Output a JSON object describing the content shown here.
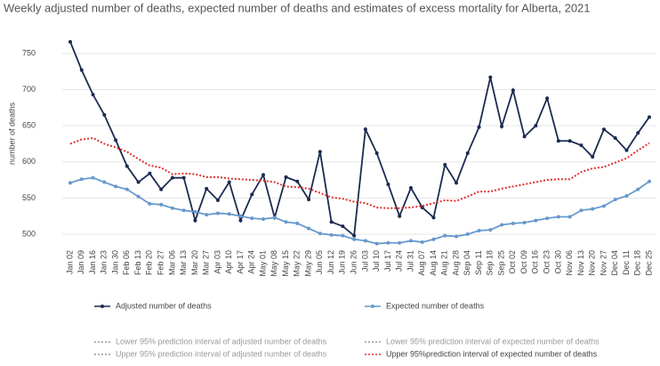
{
  "chart_data": {
    "type": "line",
    "title": "Weekly adjusted number of deaths, expected number of deaths and estimates of excess mortality for Alberta, 2021",
    "y_label": "number of deaths",
    "categories": [
      "Jan 02",
      "Jan 09",
      "Jan 16",
      "Jan 23",
      "Jan 30",
      "Feb 06",
      "Feb 13",
      "Feb 20",
      "Feb 27",
      "Mar 06",
      "Mar 13",
      "Mar 20",
      "Mar 27",
      "Apr 03",
      "Apr 10",
      "Apr 17",
      "Apr 24",
      "May 01",
      "May 08",
      "May 15",
      "May 22",
      "May 29",
      "Jun 05",
      "Jun 12",
      "Jun 19",
      "Jun 26",
      "Jul 03",
      "Jul 10",
      "Jul 17",
      "Jul 24",
      "Jul 31",
      "Aug 07",
      "Aug 14",
      "Aug 21",
      "Aug 28",
      "Sep 04",
      "Sep 11",
      "Sep 18",
      "Sep 25",
      "Oct 02",
      "Oct 09",
      "Oct 16",
      "Oct 23",
      "Oct 30",
      "Nov 06",
      "Nov 13",
      "Nov 20",
      "Nov 27",
      "Dec 04",
      "Dec 11",
      "Dec 18",
      "Dec 25"
    ],
    "series": [
      {
        "name": "Adjusted number of deaths",
        "color": "#1a2b50",
        "style": "solid",
        "markers": true,
        "values": [
          766,
          727,
          693,
          665,
          630,
          594,
          572,
          584,
          562,
          578,
          578,
          519,
          563,
          547,
          572,
          519,
          555,
          582,
          523,
          579,
          573,
          548,
          614,
          517,
          511,
          498,
          645,
          612,
          569,
          525,
          564,
          537,
          523,
          596,
          571,
          612,
          648,
          717,
          649,
          699,
          635,
          650,
          688,
          629,
          629,
          623,
          607,
          645,
          633,
          616,
          640,
          662
        ]
      },
      {
        "name": "Expected number of deaths",
        "color": "#6699cc",
        "style": "solid",
        "markers": true,
        "values": [
          571,
          576,
          578,
          572,
          566,
          562,
          552,
          542,
          541,
          536,
          533,
          531,
          527,
          529,
          528,
          525,
          522,
          521,
          523,
          517,
          515,
          508,
          501,
          499,
          498,
          493,
          491,
          487,
          488,
          488,
          491,
          489,
          493,
          498,
          497,
          500,
          505,
          506,
          513,
          515,
          516,
          519,
          522,
          524,
          524,
          533,
          535,
          539,
          548,
          553,
          562,
          573
        ]
      },
      {
        "name": "Upper 95%prediction interval of expected number of deaths",
        "color": "#e03030",
        "style": "dotted",
        "markers": false,
        "values": [
          625,
          631,
          633,
          625,
          620,
          614,
          604,
          595,
          592,
          583,
          584,
          583,
          579,
          579,
          577,
          576,
          575,
          574,
          572,
          566,
          565,
          563,
          557,
          551,
          549,
          545,
          543,
          537,
          536,
          536,
          537,
          539,
          543,
          547,
          546,
          552,
          559,
          559,
          563,
          566,
          569,
          572,
          575,
          576,
          576,
          586,
          591,
          593,
          599,
          605,
          616,
          626
        ]
      }
    ],
    "legend_only": [
      {
        "name": "Lower 95% prediction interval of adjusted number of deaths",
        "color": "#999999"
      },
      {
        "name": "Lower 95% prediction interval of expected number of deaths",
        "color": "#999999"
      },
      {
        "name": "Upper 95% prediction interval of adjusted number of deaths",
        "color": "#999999"
      }
    ],
    "ylim": [
      485,
      780
    ],
    "yticks": [
      500,
      550,
      600,
      650,
      700,
      750
    ],
    "grid": true
  }
}
